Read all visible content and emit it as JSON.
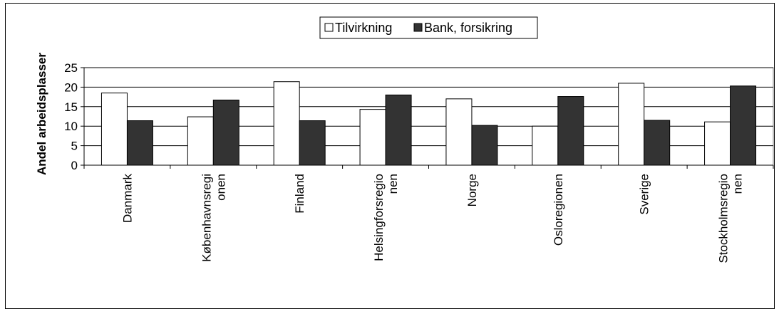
{
  "chart_data": {
    "type": "bar",
    "title": "",
    "xlabel": "",
    "ylabel": "Andel arbeidsplasser",
    "ylim": [
      0,
      25
    ],
    "yticks": [
      0,
      5,
      10,
      15,
      20,
      25
    ],
    "grid": true,
    "legend_position": "top-center",
    "categories": [
      [
        "Danmark"
      ],
      [
        "Københavnsregi",
        "onen"
      ],
      [
        "Finland"
      ],
      [
        "Helsingforsregio",
        "nen"
      ],
      [
        "Norge"
      ],
      [
        "Osloregionen"
      ],
      [
        "Sverige"
      ],
      [
        "Stockholmsregio",
        "nen"
      ]
    ],
    "series": [
      {
        "name": "Tilvirkning",
        "color": "#ffffff",
        "values": [
          18.5,
          12.4,
          21.4,
          14.3,
          17.0,
          10.0,
          21.0,
          11.1
        ]
      },
      {
        "name": "Bank, forsikring",
        "color": "#333333",
        "values": [
          11.4,
          16.7,
          11.4,
          18.0,
          10.2,
          17.6,
          11.5,
          20.3
        ]
      }
    ]
  }
}
